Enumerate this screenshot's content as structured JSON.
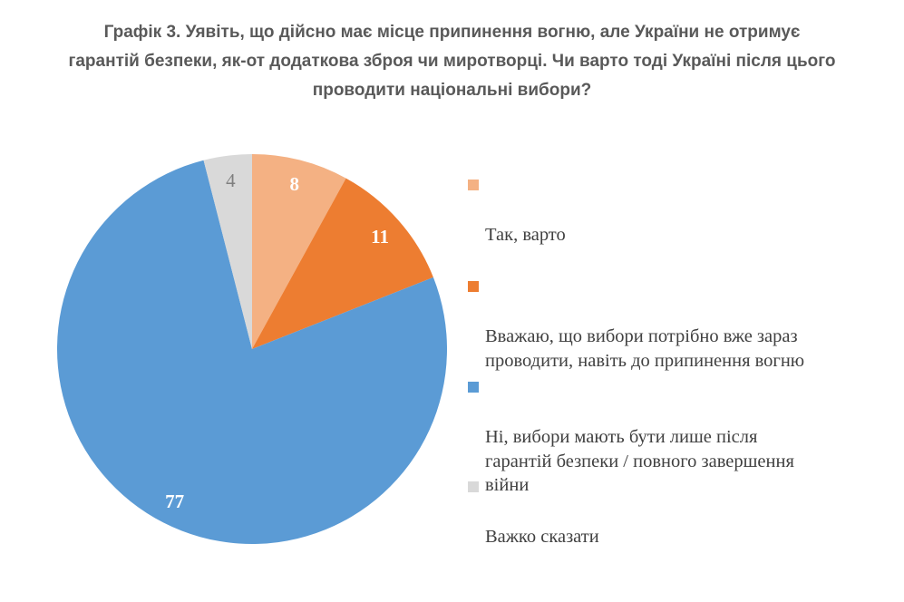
{
  "title": {
    "text": "Графік 3. Уявіть, що дійсно має місце припинення вогню, але України не отримує\nгарантій безпеки, як-от додаткова зброя чи миротворці. Чи варто тоді Україні після цього\nпроводити національні вибори?",
    "color": "#595959"
  },
  "chart_data": {
    "type": "pie",
    "title": "Графік 3. Уявіть, що дійсно має місце припинення вогню, але України не отримує гарантій безпеки, як-от додаткова зброя чи миротворці. Чи варто тоді Україні після цього проводити національні вибори?",
    "start_angle_deg": 0,
    "direction": "clockwise",
    "legend_position": "right",
    "value_labels_position": "inside-end",
    "slices": [
      {
        "label": "Так, варто",
        "value": 8,
        "color": "#F4B183",
        "value_label_color": "#FFFFFF",
        "value_label_weight": "bold"
      },
      {
        "label": "Вважаю, що вибори потрібно вже зараз\nпроводити, навіть до припинення вогню",
        "value": 11,
        "color": "#ED7D31",
        "value_label_color": "#FFFFFF",
        "value_label_weight": "bold"
      },
      {
        "label": "Ні, вибори мають бути лише після\nгарантій безпеки / повного завершення\nвійни",
        "value": 77,
        "color": "#5B9BD5",
        "value_label_color": "#FFFFFF",
        "value_label_weight": "bold"
      },
      {
        "label": "Важко сказати",
        "value": 4,
        "color": "#D9D9D9",
        "value_label_color": "#7F7F7F",
        "value_label_weight": "normal"
      }
    ],
    "legend_text_color": "#404040"
  }
}
